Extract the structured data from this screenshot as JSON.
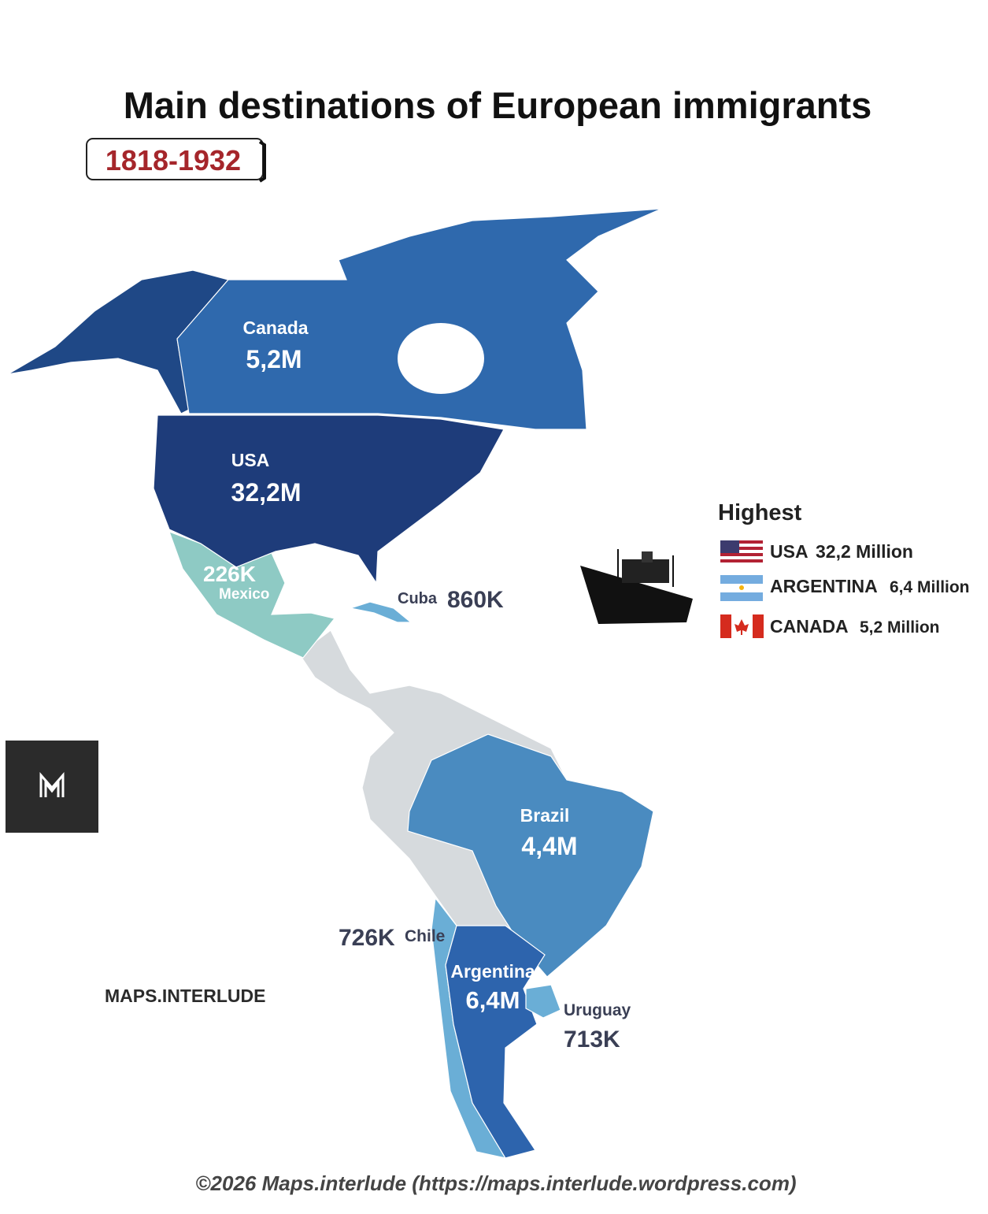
{
  "header": {
    "title": "Main destinations of European immigrants",
    "period": "1818-1932"
  },
  "regions": [
    {
      "name": "Canada",
      "value": "5,2M"
    },
    {
      "name": "USA",
      "value": "32,2M"
    },
    {
      "name": "Mexico",
      "value": "226K"
    },
    {
      "name": "Cuba",
      "value": "860K"
    },
    {
      "name": "Brazil",
      "value": "4,4M"
    },
    {
      "name": "Chile",
      "value": "726K"
    },
    {
      "name": "Argentina",
      "value": "6,4M"
    },
    {
      "name": "Uruguay",
      "value": "713K"
    }
  ],
  "legend": {
    "title": "Highest",
    "entries": [
      {
        "country": "USA",
        "value": "32,2 Million"
      },
      {
        "country": "ARGENTINA",
        "value": "6,4 Million"
      },
      {
        "country": "CANADA",
        "value": "5,2 Million"
      }
    ]
  },
  "brand": "MAPS.INTERLUDE",
  "footer": "©2026 Maps.interlude (https://maps.interlude.wordpress.com)"
}
